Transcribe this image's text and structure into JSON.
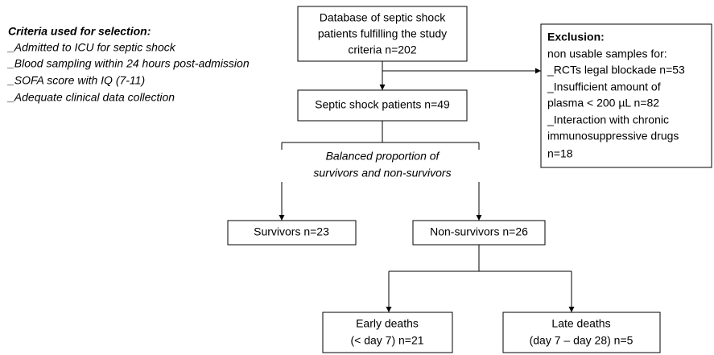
{
  "criteria": {
    "title": "Criteria used for selection:",
    "items": [
      "_Admitted to ICU for septic shock",
      "_Blood sampling within 24 hours post-admission",
      "_SOFA score with IQ (7-11)",
      "_Adequate clinical data collection"
    ]
  },
  "nodes": [
    {
      "lines": [
        "Database of septic shock",
        "patients fulfilling the study",
        "criteria n=202"
      ]
    },
    {
      "lines": [
        "Septic shock patients n=49"
      ]
    },
    {
      "lines": [
        "Survivors n=23"
      ]
    },
    {
      "lines": [
        "Non-survivors n=26"
      ]
    },
    {
      "lines": [
        "Early deaths",
        "(< day 7) n=21"
      ]
    },
    {
      "lines": [
        "Late deaths",
        "(day 7 – day 28) n=5"
      ]
    }
  ],
  "exclusion": {
    "title": "Exclusion:",
    "lines": [
      "non usable samples for:",
      "_RCTs legal blockade n=53",
      "_Insufficient amount of",
      "plasma < 200 µL n=82",
      "_Interaction with chronic",
      "immunosuppressive drugs",
      "n=18"
    ]
  },
  "annotation": {
    "lines": [
      "Balanced proportion of",
      "survivors and non-survivors"
    ]
  }
}
